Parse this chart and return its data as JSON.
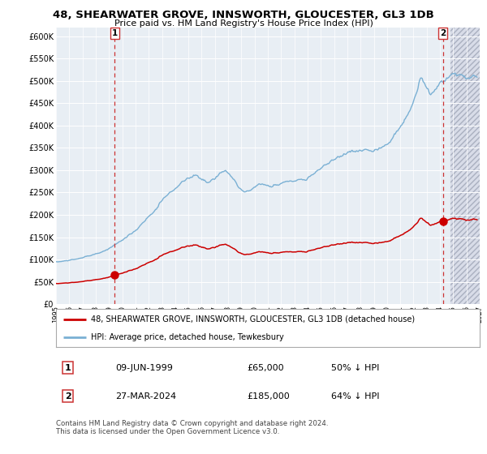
{
  "title": "48, SHEARWATER GROVE, INNSWORTH, GLOUCESTER, GL3 1DB",
  "subtitle": "Price paid vs. HM Land Registry's House Price Index (HPI)",
  "legend_line1": "48, SHEARWATER GROVE, INNSWORTH, GLOUCESTER, GL3 1DB (detached house)",
  "legend_line2": "HPI: Average price, detached house, Tewkesbury",
  "transaction1_date": "09-JUN-1999",
  "transaction1_price": "£65,000",
  "transaction1_hpi": "50% ↓ HPI",
  "transaction1_year": 1999.44,
  "transaction1_value": 65000,
  "transaction2_date": "27-MAR-2024",
  "transaction2_price": "£185,000",
  "transaction2_hpi": "64% ↓ HPI",
  "transaction2_year": 2024.23,
  "transaction2_value": 185000,
  "red_line_color": "#cc0000",
  "blue_line_color": "#7ab0d4",
  "hatch_color": "#d8dce8",
  "plot_bg_color": "#e8eef4",
  "grid_color": "#ffffff",
  "dashed_line_color": "#cc3333",
  "footer_text": "Contains HM Land Registry data © Crown copyright and database right 2024.\nThis data is licensed under the Open Government Licence v3.0.",
  "ylim": [
    0,
    620000
  ],
  "yticks": [
    0,
    50000,
    100000,
    150000,
    200000,
    250000,
    300000,
    350000,
    400000,
    450000,
    500000,
    550000,
    600000
  ],
  "ytick_labels": [
    "£0",
    "£50K",
    "£100K",
    "£150K",
    "£200K",
    "£250K",
    "£300K",
    "£350K",
    "£400K",
    "£450K",
    "£500K",
    "£550K",
    "£600K"
  ],
  "xmin": 1995.0,
  "xmax": 2027.0
}
